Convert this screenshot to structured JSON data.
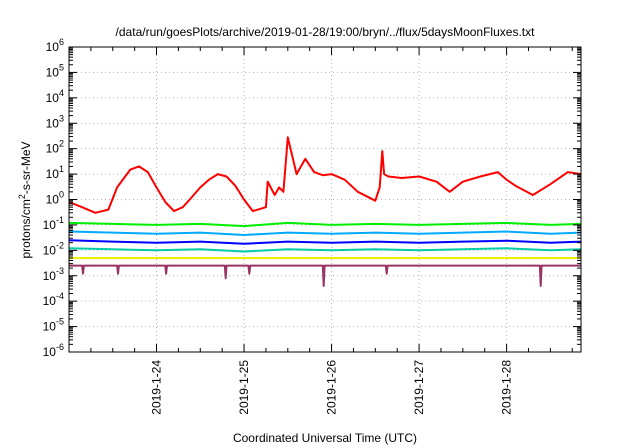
{
  "chart_data": {
    "type": "line",
    "title": "/data/run/goesPlots/archive/2019-01-28/19:00/bryn/../flux/5daysMoonFluxes.txt",
    "xlabel": "Coordinated Universal Time (UTC)",
    "ylabel_base": "protons/cm",
    "ylabel_sup": "2",
    "ylabel_rest": "-s-sr-MeV",
    "y_scale": "log",
    "ylim_exp": [
      -6,
      6
    ],
    "y_tick_base": "10",
    "y_tick_exponents": [
      "-6",
      "-5",
      "-4",
      "-3",
      "-2",
      "-1",
      "0",
      "1",
      "2",
      "3",
      "4",
      "5",
      "6"
    ],
    "xlim_days": [
      23.0,
      28.85
    ],
    "x_ticks": [
      {
        "day": 24,
        "label": "2019-1-24"
      },
      {
        "day": 25,
        "label": "2019-1-25"
      },
      {
        "day": 26,
        "label": "2019-1-26"
      },
      {
        "day": 27,
        "label": "2019-1-27"
      },
      {
        "day": 28,
        "label": "2019-1-28"
      }
    ],
    "grid": true,
    "series": [
      {
        "color": "#ff0000",
        "x": [
          23.0,
          23.15,
          23.3,
          23.45,
          23.55,
          23.7,
          23.8,
          23.9,
          24.0,
          24.1,
          24.2,
          24.3,
          24.4,
          24.5,
          24.6,
          24.7,
          24.8,
          24.9,
          25.0,
          25.1,
          25.25,
          25.27,
          25.35,
          25.4,
          25.45,
          25.5,
          25.6,
          25.7,
          25.8,
          25.9,
          26.0,
          26.15,
          26.3,
          26.5,
          26.55,
          26.58,
          26.6,
          26.65,
          26.8,
          27.0,
          27.2,
          27.35,
          27.5,
          27.7,
          27.9,
          28.0,
          28.1,
          28.3,
          28.5,
          28.7,
          28.85
        ],
        "y": [
          0.8,
          0.5,
          0.3,
          0.4,
          3.0,
          15,
          20,
          12,
          3,
          0.8,
          0.35,
          0.5,
          1.2,
          3.0,
          6,
          10,
          8,
          3.5,
          1.0,
          0.35,
          0.5,
          5,
          1.5,
          3,
          2,
          280,
          10,
          40,
          12,
          9,
          10,
          6,
          2.0,
          0.9,
          3,
          80,
          10,
          8,
          7,
          8,
          5,
          2.0,
          5,
          8,
          12,
          6,
          3.5,
          1.5,
          4,
          12,
          10
        ]
      },
      {
        "color": "#00ee00",
        "x": [
          23.0,
          23.5,
          24.0,
          24.5,
          25.0,
          25.5,
          26.0,
          26.5,
          27.0,
          27.5,
          28.0,
          28.5,
          28.85
        ],
        "y": [
          0.12,
          0.11,
          0.1,
          0.11,
          0.09,
          0.12,
          0.1,
          0.11,
          0.1,
          0.11,
          0.12,
          0.1,
          0.11
        ]
      },
      {
        "color": "#00aaff",
        "x": [
          23.0,
          23.5,
          24.0,
          24.5,
          25.0,
          25.5,
          26.0,
          26.5,
          27.0,
          27.5,
          28.0,
          28.5,
          28.85
        ],
        "y": [
          0.055,
          0.05,
          0.045,
          0.05,
          0.04,
          0.05,
          0.045,
          0.05,
          0.045,
          0.05,
          0.055,
          0.045,
          0.05
        ]
      },
      {
        "color": "#0000ff",
        "x": [
          23.0,
          23.5,
          24.0,
          24.5,
          25.0,
          25.5,
          26.0,
          26.5,
          27.0,
          27.5,
          28.0,
          28.5,
          28.85
        ],
        "y": [
          0.025,
          0.022,
          0.02,
          0.022,
          0.018,
          0.022,
          0.02,
          0.022,
          0.02,
          0.022,
          0.024,
          0.02,
          0.022
        ]
      },
      {
        "color": "#00ccaa",
        "x": [
          23.0,
          23.5,
          24.0,
          24.5,
          25.0,
          25.5,
          26.0,
          26.5,
          27.0,
          27.5,
          28.0,
          28.5,
          28.85
        ],
        "y": [
          0.012,
          0.011,
          0.01,
          0.011,
          0.009,
          0.011,
          0.01,
          0.011,
          0.01,
          0.011,
          0.012,
          0.01,
          0.011
        ]
      },
      {
        "color": "#eeee00",
        "x": [
          23.0,
          23.5,
          24.0,
          24.5,
          25.0,
          25.5,
          26.0,
          26.5,
          27.0,
          27.5,
          28.0,
          28.5,
          28.85
        ],
        "y": [
          0.005,
          0.005,
          0.005,
          0.005,
          0.005,
          0.005,
          0.005,
          0.005,
          0.005,
          0.005,
          0.005,
          0.005,
          0.005
        ]
      },
      {
        "color": "#993366",
        "x": [
          23.0,
          23.15,
          23.16,
          23.17,
          23.5,
          23.55,
          23.56,
          23.57,
          24.0,
          24.1,
          24.11,
          24.12,
          24.5,
          24.78,
          24.79,
          24.8,
          25.0,
          25.05,
          25.06,
          25.07,
          25.5,
          25.9,
          25.91,
          25.92,
          26.5,
          26.62,
          26.63,
          26.64,
          27.0,
          27.5,
          28.0,
          28.38,
          28.39,
          28.4,
          28.85
        ],
        "y": [
          0.0025,
          0.0025,
          0.0012,
          0.0025,
          0.0025,
          0.0025,
          0.0012,
          0.0025,
          0.0025,
          0.0025,
          0.0012,
          0.0025,
          0.0025,
          0.0025,
          0.0008,
          0.0025,
          0.0025,
          0.0025,
          0.0012,
          0.0025,
          0.0025,
          0.0025,
          0.0004,
          0.0025,
          0.0025,
          0.0025,
          0.0012,
          0.0025,
          0.0025,
          0.0025,
          0.0025,
          0.0025,
          0.0004,
          0.0025,
          0.0025
        ]
      }
    ]
  }
}
